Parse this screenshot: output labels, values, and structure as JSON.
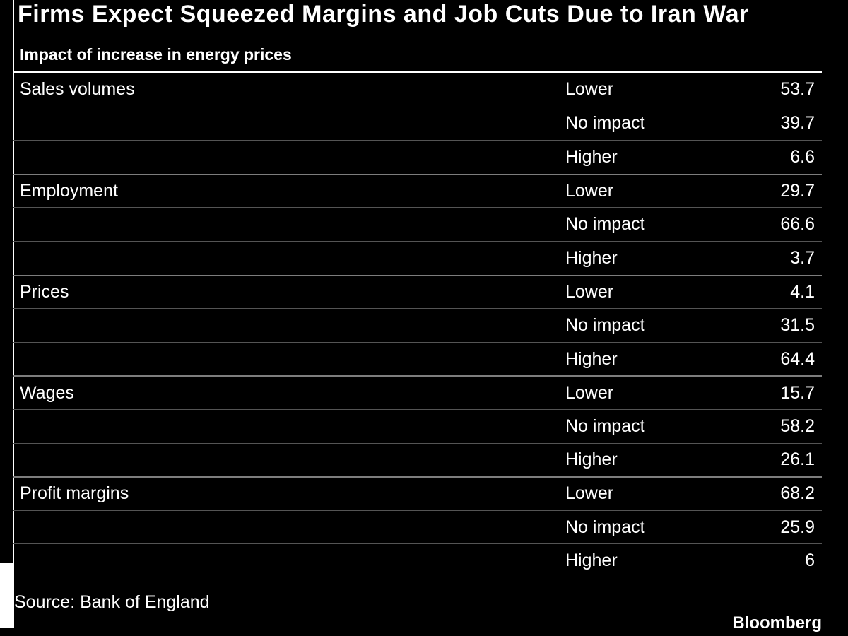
{
  "meta": {
    "background_color": "#000000",
    "text_color": "#ffffff",
    "header_rule_color": "#ffffff",
    "inner_divider_color": "#545454",
    "group_divider_color": "#7d7d7d"
  },
  "header": {
    "title": "Firms Expect Squeezed Margins and Job Cuts Due to Iran War",
    "subtitle": "Impact of increase in energy prices"
  },
  "footer": {
    "source": "Source: Bank of England",
    "brand": "Bloomberg"
  },
  "chart_data": {
    "type": "table",
    "title": "Firms Expect Squeezed Margins and Job Cuts Due to Iran War",
    "subtitle": "Impact of increase in energy prices",
    "source": "Source: Bank of England",
    "categories": [
      "Sales volumes",
      "Employment",
      "Prices",
      "Wages",
      "Profit margins"
    ],
    "impact_levels": [
      "Lower",
      "No impact",
      "Higher"
    ],
    "series": [
      {
        "name": "Lower",
        "values": [
          53.7,
          29.7,
          4.1,
          15.7,
          68.2
        ]
      },
      {
        "name": "No impact",
        "values": [
          39.7,
          66.6,
          31.5,
          58.2,
          25.9
        ]
      },
      {
        "name": "Higher",
        "values": [
          6.6,
          3.7,
          64.4,
          26.1,
          6
        ]
      }
    ],
    "rows": [
      {
        "category": "Sales volumes",
        "impact": "Lower",
        "value": "53.7"
      },
      {
        "category": "",
        "impact": "No impact",
        "value": "39.7"
      },
      {
        "category": "",
        "impact": "Higher",
        "value": "6.6"
      },
      {
        "category": "Employment",
        "impact": "Lower",
        "value": "29.7"
      },
      {
        "category": "",
        "impact": "No impact",
        "value": "66.6"
      },
      {
        "category": "",
        "impact": "Higher",
        "value": "3.7"
      },
      {
        "category": "Prices",
        "impact": "Lower",
        "value": "4.1"
      },
      {
        "category": "",
        "impact": "No impact",
        "value": "31.5"
      },
      {
        "category": "",
        "impact": "Higher",
        "value": "64.4"
      },
      {
        "category": "Wages",
        "impact": "Lower",
        "value": "15.7"
      },
      {
        "category": "",
        "impact": "No impact",
        "value": "58.2"
      },
      {
        "category": "",
        "impact": "Higher",
        "value": "26.1"
      },
      {
        "category": "Profit margins",
        "impact": "Lower",
        "value": "68.2"
      },
      {
        "category": "",
        "impact": "No impact",
        "value": "25.9"
      },
      {
        "category": "",
        "impact": "Higher",
        "value": "6"
      }
    ]
  }
}
